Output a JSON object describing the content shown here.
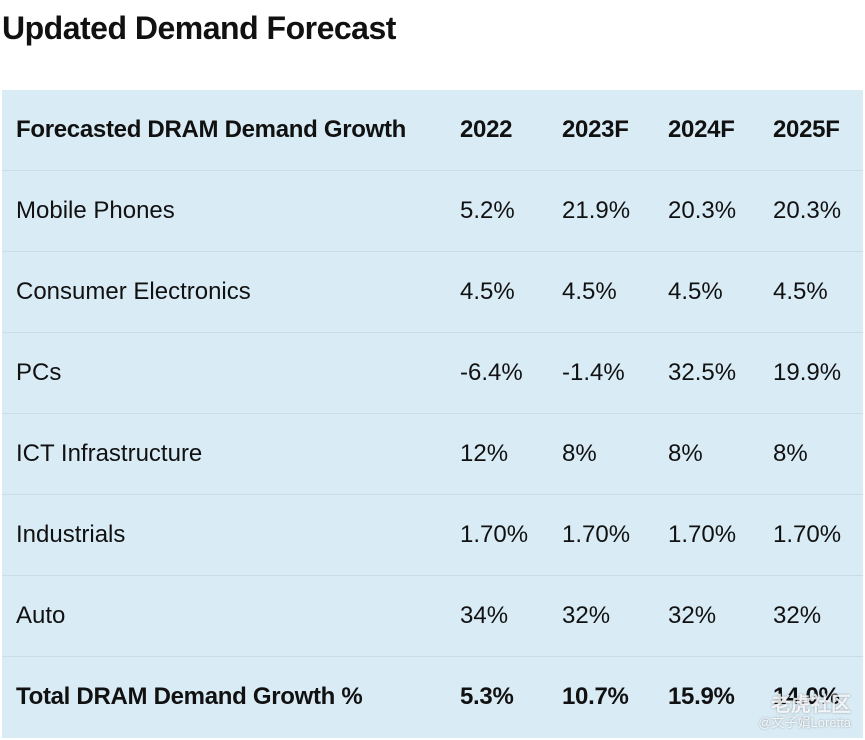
{
  "title": "Updated Demand Forecast",
  "table": {
    "headers": [
      "Forecasted DRAM Demand Growth",
      "2022",
      "2023F",
      "2024F",
      "2025F"
    ],
    "rows": [
      [
        "Mobile Phones",
        "5.2%",
        "21.9%",
        "20.3%",
        "20.3%"
      ],
      [
        "Consumer Electronics",
        "4.5%",
        "4.5%",
        "4.5%",
        "4.5%"
      ],
      [
        "PCs",
        "-6.4%",
        "-1.4%",
        "32.5%",
        "19.9%"
      ],
      [
        "ICT Infrastructure",
        "12%",
        "8%",
        "8%",
        "8%"
      ],
      [
        "Industrials",
        "1.70%",
        "1.70%",
        "1.70%",
        "1.70%"
      ],
      [
        "Auto",
        "34%",
        "32%",
        "32%",
        "32%"
      ]
    ],
    "total": [
      "Total DRAM Demand Growth %",
      "5.3%",
      "10.7%",
      "15.9%",
      "14.0%"
    ]
  },
  "watermark": {
    "main": "老虎社区",
    "sub": "@文子娟Loretta"
  }
}
